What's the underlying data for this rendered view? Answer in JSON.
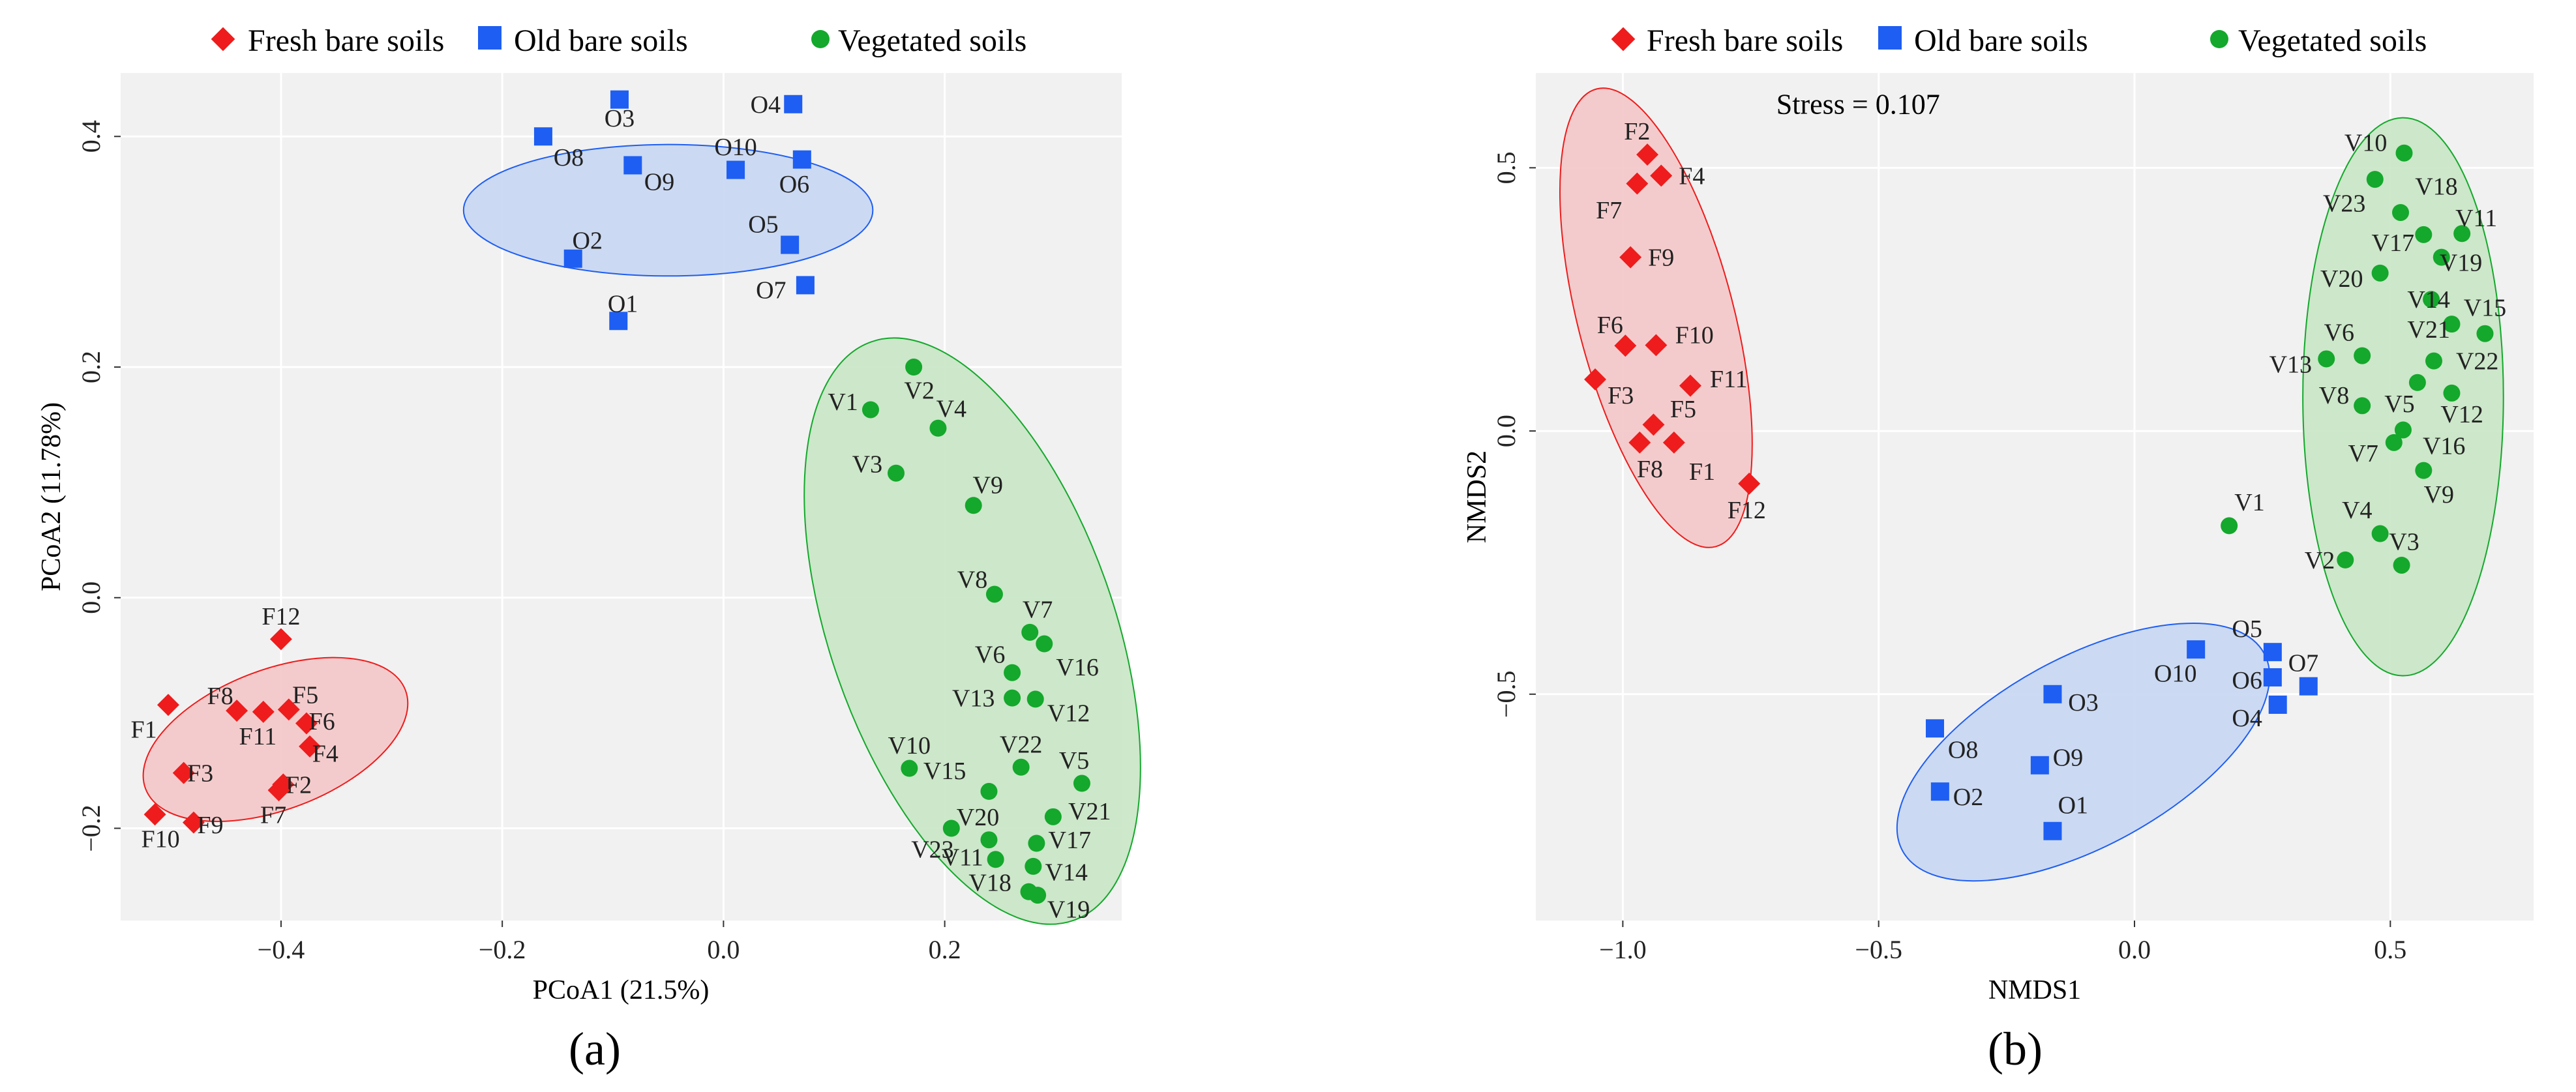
{
  "legend": {
    "fresh": "Fresh bare soils",
    "old": "Old bare soils",
    "veg": "Vegetated soils"
  },
  "colors": {
    "fresh": "#ee1c1c",
    "old": "#1e5ef2",
    "veg": "#14a82c",
    "fresh_fill": "#f4c6c8",
    "old_fill": "#c6d6f2",
    "veg_fill": "#c8e6c4",
    "panel_bg": "#f1f1f1",
    "grid": "#ffffff"
  },
  "chart_data": [
    {
      "type": "scatter",
      "panel_label": "(a)",
      "xlabel": "PCoA1 (21.5%)",
      "ylabel": "PCoA2 (11.78%)",
      "xlim": [
        -0.545,
        0.36
      ],
      "ylim": [
        -0.28,
        0.455
      ],
      "xticks": [
        -0.4,
        -0.2,
        0.0,
        0.2
      ],
      "xtick_labels": [
        "−0.4",
        "−0.2",
        "0.0",
        "0.2"
      ],
      "yticks": [
        -0.2,
        0.0,
        0.2,
        0.4
      ],
      "ytick_labels": [
        "−0.2",
        "0.0",
        "0.2",
        "0.4"
      ],
      "ellipses": [
        {
          "group": "fresh",
          "cx": -0.405,
          "cy": -0.123,
          "rx": 0.125,
          "ry": 0.061,
          "angle": 20
        },
        {
          "group": "old",
          "cx": -0.05,
          "cy": 0.336,
          "rx": 0.185,
          "ry": 0.057,
          "angle": 0
        },
        {
          "group": "veg",
          "cx": 0.225,
          "cy": -0.029,
          "rx": 0.267,
          "ry": 0.128,
          "angle": -70
        }
      ],
      "series": [
        {
          "name": "Fresh bare soils",
          "group": "fresh",
          "points": [
            {
              "label": "F1",
              "x": -0.502,
              "y": -0.093,
              "lx": -0.022,
              "ly": -0.021
            },
            {
              "label": "F2",
              "x": -0.398,
              "y": -0.162,
              "lx": 0.014,
              "ly": 0.0
            },
            {
              "label": "F3",
              "x": -0.488,
              "y": -0.152,
              "lx": 0.015,
              "ly": 0.0
            },
            {
              "label": "F4",
              "x": -0.374,
              "y": -0.129,
              "lx": 0.014,
              "ly": -0.006
            },
            {
              "label": "F5",
              "x": -0.393,
              "y": -0.097,
              "lx": 0.015,
              "ly": 0.013
            },
            {
              "label": "F6",
              "x": -0.377,
              "y": -0.109,
              "lx": 0.014,
              "ly": 0.002
            },
            {
              "label": "F7",
              "x": -0.402,
              "y": -0.167,
              "lx": -0.005,
              "ly": -0.021
            },
            {
              "label": "F8",
              "x": -0.44,
              "y": -0.098,
              "lx": -0.015,
              "ly": 0.013
            },
            {
              "label": "F9",
              "x": -0.479,
              "y": -0.195,
              "lx": 0.015,
              "ly": -0.002
            },
            {
              "label": "F10",
              "x": -0.514,
              "y": -0.188,
              "lx": 0.005,
              "ly": -0.021
            },
            {
              "label": "F11",
              "x": -0.416,
              "y": -0.099,
              "lx": -0.005,
              "ly": -0.021
            },
            {
              "label": "F12",
              "x": -0.4,
              "y": -0.036,
              "lx": 0.0,
              "ly": 0.02
            }
          ]
        },
        {
          "name": "Old bare soils",
          "group": "old",
          "points": [
            {
              "label": "O1",
              "x": -0.095,
              "y": 0.24,
              "lx": 0.004,
              "ly": 0.015
            },
            {
              "label": "O2",
              "x": -0.136,
              "y": 0.294,
              "lx": 0.013,
              "ly": 0.016
            },
            {
              "label": "O3",
              "x": -0.094,
              "y": 0.432,
              "lx": 0.0,
              "ly": -0.016
            },
            {
              "label": "O4",
              "x": 0.063,
              "y": 0.428,
              "lx": -0.025,
              "ly": 0.0
            },
            {
              "label": "O5",
              "x": 0.06,
              "y": 0.306,
              "lx": -0.024,
              "ly": 0.018
            },
            {
              "label": "O6",
              "x": 0.071,
              "y": 0.38,
              "lx": -0.007,
              "ly": -0.021
            },
            {
              "label": "O7",
              "x": 0.074,
              "y": 0.271,
              "lx": -0.031,
              "ly": -0.004
            },
            {
              "label": "O8",
              "x": -0.163,
              "y": 0.4,
              "lx": 0.023,
              "ly": -0.018
            },
            {
              "label": "O9",
              "x": -0.082,
              "y": 0.375,
              "lx": 0.024,
              "ly": -0.014
            },
            {
              "label": "O10",
              "x": 0.011,
              "y": 0.371,
              "lx": 0.0,
              "ly": 0.02
            }
          ]
        },
        {
          "name": "Vegetated soils",
          "group": "veg",
          "points": [
            {
              "label": "V1",
              "x": 0.133,
              "y": 0.163,
              "lx": -0.025,
              "ly": 0.007
            },
            {
              "label": "V2",
              "x": 0.172,
              "y": 0.2,
              "lx": 0.005,
              "ly": -0.02
            },
            {
              "label": "V3",
              "x": 0.156,
              "y": 0.108,
              "lx": -0.026,
              "ly": 0.008
            },
            {
              "label": "V4",
              "x": 0.194,
              "y": 0.147,
              "lx": 0.012,
              "ly": 0.017
            },
            {
              "label": "V5",
              "x": 0.324,
              "y": -0.161,
              "lx": -0.007,
              "ly": 0.02
            },
            {
              "label": "V6",
              "x": 0.261,
              "y": -0.065,
              "lx": -0.02,
              "ly": 0.016
            },
            {
              "label": "V7",
              "x": 0.277,
              "y": -0.03,
              "lx": 0.007,
              "ly": 0.02
            },
            {
              "label": "V8",
              "x": 0.245,
              "y": 0.003,
              "lx": -0.02,
              "ly": 0.013
            },
            {
              "label": "V9",
              "x": 0.226,
              "y": 0.08,
              "lx": 0.013,
              "ly": 0.018
            },
            {
              "label": "V10",
              "x": 0.168,
              "y": -0.148,
              "lx": 0.0,
              "ly": 0.02
            },
            {
              "label": "V11",
              "x": 0.246,
              "y": -0.227,
              "lx": -0.03,
              "ly": 0.002
            },
            {
              "label": "V12",
              "x": 0.282,
              "y": -0.088,
              "lx": 0.03,
              "ly": -0.012
            },
            {
              "label": "V13",
              "x": 0.261,
              "y": -0.087,
              "lx": -0.035,
              "ly": 0.0
            },
            {
              "label": "V14",
              "x": 0.28,
              "y": -0.233,
              "lx": 0.03,
              "ly": -0.005
            },
            {
              "label": "V15",
              "x": 0.24,
              "y": -0.168,
              "lx": -0.04,
              "ly": 0.018
            },
            {
              "label": "V16",
              "x": 0.29,
              "y": -0.04,
              "lx": 0.03,
              "ly": -0.02
            },
            {
              "label": "V17",
              "x": 0.283,
              "y": -0.213,
              "lx": 0.03,
              "ly": 0.003
            },
            {
              "label": "V18",
              "x": 0.276,
              "y": -0.255,
              "lx": -0.035,
              "ly": 0.008
            },
            {
              "label": "V19",
              "x": 0.284,
              "y": -0.258,
              "lx": 0.028,
              "ly": -0.012
            },
            {
              "label": "V20",
              "x": 0.24,
              "y": -0.21,
              "lx": -0.01,
              "ly": 0.02
            },
            {
              "label": "V21",
              "x": 0.298,
              "y": -0.19,
              "lx": 0.033,
              "ly": 0.005
            },
            {
              "label": "V22",
              "x": 0.269,
              "y": -0.147,
              "lx": 0.0,
              "ly": 0.02
            },
            {
              "label": "V23",
              "x": 0.206,
              "y": -0.2,
              "lx": -0.017,
              "ly": -0.018
            }
          ]
        }
      ]
    },
    {
      "type": "scatter",
      "panel_label": "(b)",
      "xlabel": "NMDS1",
      "ylabel": "NMDS2",
      "annotation": "Stress = 0.107",
      "annotation_at": {
        "x": -0.7,
        "y": 0.62
      },
      "xlim": [
        -1.17,
        0.78
      ],
      "ylim": [
        -0.93,
        0.68
      ],
      "xticks": [
        -1.0,
        -0.5,
        0.0,
        0.5
      ],
      "xtick_labels": [
        "−1.0",
        "−0.5",
        "0.0",
        "0.5"
      ],
      "yticks": [
        -0.5,
        0.0,
        0.5
      ],
      "ytick_labels": [
        "−0.5",
        "0.0",
        "0.5"
      ],
      "ellipses": [
        {
          "group": "fresh",
          "cx": -0.935,
          "cy": 0.215,
          "rx": 0.45,
          "ry": 0.152,
          "angle": -75
        },
        {
          "group": "veg",
          "cx": 0.525,
          "cy": 0.065,
          "rx": 0.53,
          "ry": 0.196,
          "angle": -90
        },
        {
          "group": "old",
          "cx": -0.1,
          "cy": -0.61,
          "rx": 0.4,
          "ry": 0.18,
          "angle": 28
        }
      ],
      "series": [
        {
          "name": "Fresh bare soils",
          "group": "fresh",
          "points": [
            {
              "label": "F1",
              "x": -0.9,
              "y": -0.022,
              "lx": 0.055,
              "ly": -0.055
            },
            {
              "label": "F2",
              "x": -0.952,
              "y": 0.525,
              "lx": -0.02,
              "ly": 0.045
            },
            {
              "label": "F3",
              "x": -1.054,
              "y": 0.098,
              "lx": 0.05,
              "ly": -0.03
            },
            {
              "label": "F4",
              "x": -0.925,
              "y": 0.485,
              "lx": 0.06,
              "ly": 0.0
            },
            {
              "label": "F5",
              "x": -0.94,
              "y": 0.012,
              "lx": 0.058,
              "ly": 0.03
            },
            {
              "label": "F6",
              "x": -0.995,
              "y": 0.162,
              "lx": -0.03,
              "ly": 0.04
            },
            {
              "label": "F7",
              "x": -0.972,
              "y": 0.47,
              "lx": -0.055,
              "ly": -0.05
            },
            {
              "label": "F8",
              "x": -0.967,
              "y": -0.022,
              "lx": 0.02,
              "ly": -0.05
            },
            {
              "label": "F9",
              "x": -0.985,
              "y": 0.33,
              "lx": 0.06,
              "ly": 0.0
            },
            {
              "label": "F10",
              "x": -0.935,
              "y": 0.163,
              "lx": 0.075,
              "ly": 0.02
            },
            {
              "label": "F11",
              "x": -0.868,
              "y": 0.086,
              "lx": 0.075,
              "ly": 0.013
            },
            {
              "label": "F12",
              "x": -0.753,
              "y": -0.1,
              "lx": -0.005,
              "ly": -0.05
            }
          ]
        },
        {
          "name": "Old bare soils",
          "group": "old",
          "points": [
            {
              "label": "O1",
              "x": -0.16,
              "y": -0.76,
              "lx": 0.04,
              "ly": 0.05
            },
            {
              "label": "O2",
              "x": -0.38,
              "y": -0.685,
              "lx": 0.055,
              "ly": -0.01
            },
            {
              "label": "O3",
              "x": -0.16,
              "y": -0.5,
              "lx": 0.06,
              "ly": -0.015
            },
            {
              "label": "O4",
              "x": 0.28,
              "y": -0.52,
              "lx": -0.06,
              "ly": -0.025
            },
            {
              "label": "O5",
              "x": 0.27,
              "y": -0.42,
              "lx": -0.05,
              "ly": 0.045
            },
            {
              "label": "O6",
              "x": 0.27,
              "y": -0.468,
              "lx": -0.05,
              "ly": -0.005
            },
            {
              "label": "O7",
              "x": 0.34,
              "y": -0.485,
              "lx": -0.01,
              "ly": 0.045
            },
            {
              "label": "O8",
              "x": -0.39,
              "y": -0.565,
              "lx": 0.055,
              "ly": -0.04
            },
            {
              "label": "O9",
              "x": -0.185,
              "y": -0.635,
              "lx": 0.055,
              "ly": 0.015
            },
            {
              "label": "O10",
              "x": 0.12,
              "y": -0.415,
              "lx": -0.04,
              "ly": -0.045
            }
          ]
        },
        {
          "name": "Vegetated soils",
          "group": "veg",
          "points": [
            {
              "label": "V1",
              "x": 0.185,
              "y": -0.18,
              "lx": 0.04,
              "ly": 0.045
            },
            {
              "label": "V2",
              "x": 0.412,
              "y": -0.245,
              "lx": -0.05,
              "ly": 0.0
            },
            {
              "label": "V3",
              "x": 0.522,
              "y": -0.255,
              "lx": 0.005,
              "ly": 0.045
            },
            {
              "label": "V4",
              "x": 0.48,
              "y": -0.195,
              "lx": -0.045,
              "ly": 0.045
            },
            {
              "label": "V5",
              "x": 0.553,
              "y": 0.092,
              "lx": -0.035,
              "ly": -0.04
            },
            {
              "label": "V6",
              "x": 0.445,
              "y": 0.143,
              "lx": -0.045,
              "ly": 0.045
            },
            {
              "label": "V7",
              "x": 0.507,
              "y": -0.022,
              "lx": -0.06,
              "ly": -0.02
            },
            {
              "label": "V8",
              "x": 0.445,
              "y": 0.048,
              "lx": -0.055,
              "ly": 0.02
            },
            {
              "label": "V9",
              "x": 0.565,
              "y": -0.075,
              "lx": 0.03,
              "ly": -0.045
            },
            {
              "label": "V10",
              "x": 0.527,
              "y": 0.528,
              "lx": -0.075,
              "ly": 0.02
            },
            {
              "label": "V11",
              "x": 0.64,
              "y": 0.375,
              "lx": 0.028,
              "ly": 0.03
            },
            {
              "label": "V12",
              "x": 0.62,
              "y": 0.072,
              "lx": 0.02,
              "ly": -0.04
            },
            {
              "label": "V13",
              "x": 0.375,
              "y": 0.137,
              "lx": -0.07,
              "ly": -0.01
            },
            {
              "label": "V14",
              "x": 0.58,
              "y": 0.25,
              "lx": -0.005,
              "ly": 0.0
            },
            {
              "label": "V15",
              "x": 0.685,
              "y": 0.185,
              "lx": 0.0,
              "ly": 0.05
            },
            {
              "label": "V16",
              "x": 0.525,
              "y": 0.002,
              "lx": 0.08,
              "ly": -0.03
            },
            {
              "label": "V17",
              "x": 0.565,
              "y": 0.373,
              "lx": -0.06,
              "ly": -0.015
            },
            {
              "label": "V18",
              "x": 0.52,
              "y": 0.415,
              "lx": 0.07,
              "ly": 0.05
            },
            {
              "label": "V19",
              "x": 0.6,
              "y": 0.33,
              "lx": 0.038,
              "ly": -0.01
            },
            {
              "label": "V20",
              "x": 0.48,
              "y": 0.3,
              "lx": -0.075,
              "ly": -0.01
            },
            {
              "label": "V21",
              "x": 0.62,
              "y": 0.203,
              "lx": -0.045,
              "ly": -0.01
            },
            {
              "label": "V22",
              "x": 0.585,
              "y": 0.133,
              "lx": 0.085,
              "ly": 0.0
            },
            {
              "label": "V23",
              "x": 0.47,
              "y": 0.478,
              "lx": -0.06,
              "ly": -0.045
            }
          ]
        }
      ]
    }
  ]
}
